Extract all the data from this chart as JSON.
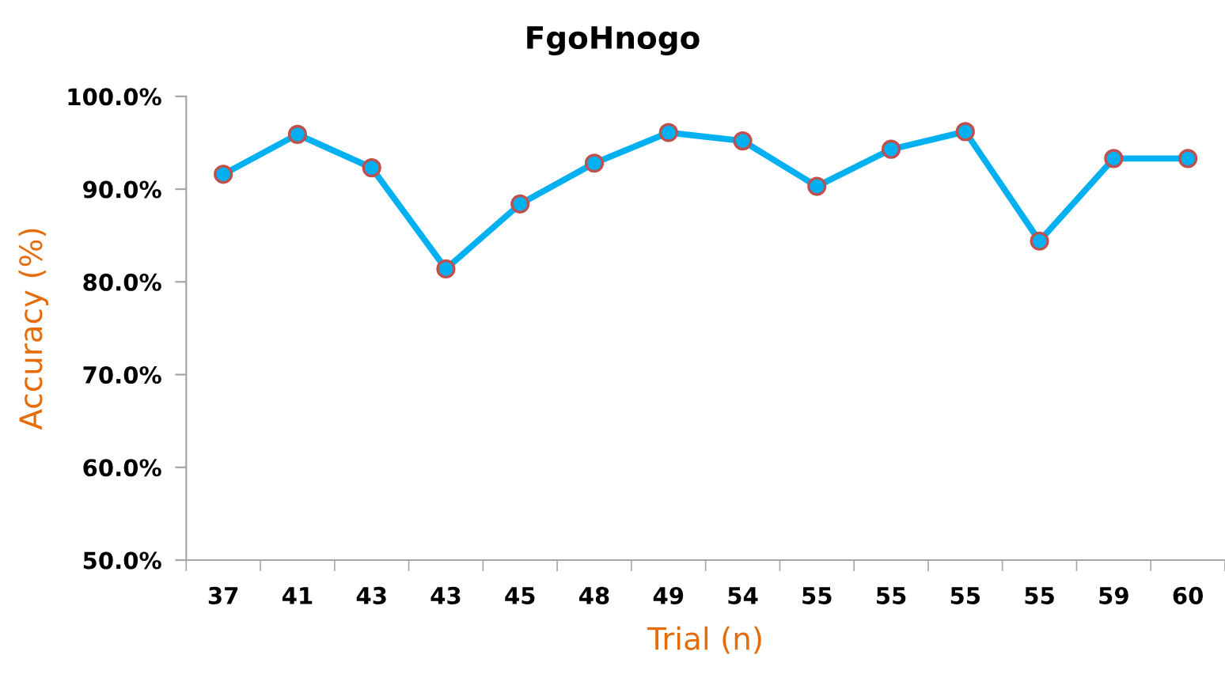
{
  "chart_data": {
    "type": "line",
    "title": "FgoHnogo",
    "xlabel": "Trial (n)",
    "ylabel": "Accuracy (%)",
    "categories": [
      "37",
      "41",
      "43",
      "43",
      "45",
      "48",
      "49",
      "54",
      "55",
      "55",
      "55",
      "55",
      "59",
      "60"
    ],
    "series": [
      {
        "color": "#00b0f0",
        "values": [
          91.6,
          95.9,
          92.3,
          81.4,
          88.4,
          92.8,
          96.1,
          95.2,
          90.3,
          94.3,
          96.2,
          84.4,
          93.3,
          93.3
        ]
      }
    ],
    "ylim": [
      50,
      100
    ],
    "yticks": [
      {
        "value": 50,
        "label": "50.0%"
      },
      {
        "value": 60,
        "label": "60.0%"
      },
      {
        "value": 70,
        "label": "70.0%"
      },
      {
        "value": 80,
        "label": "80.0%"
      },
      {
        "value": 90,
        "label": "90.0%"
      },
      {
        "value": 100,
        "label": "100.0%"
      }
    ],
    "grid": false,
    "marker": "circle",
    "line_style": "solid"
  }
}
